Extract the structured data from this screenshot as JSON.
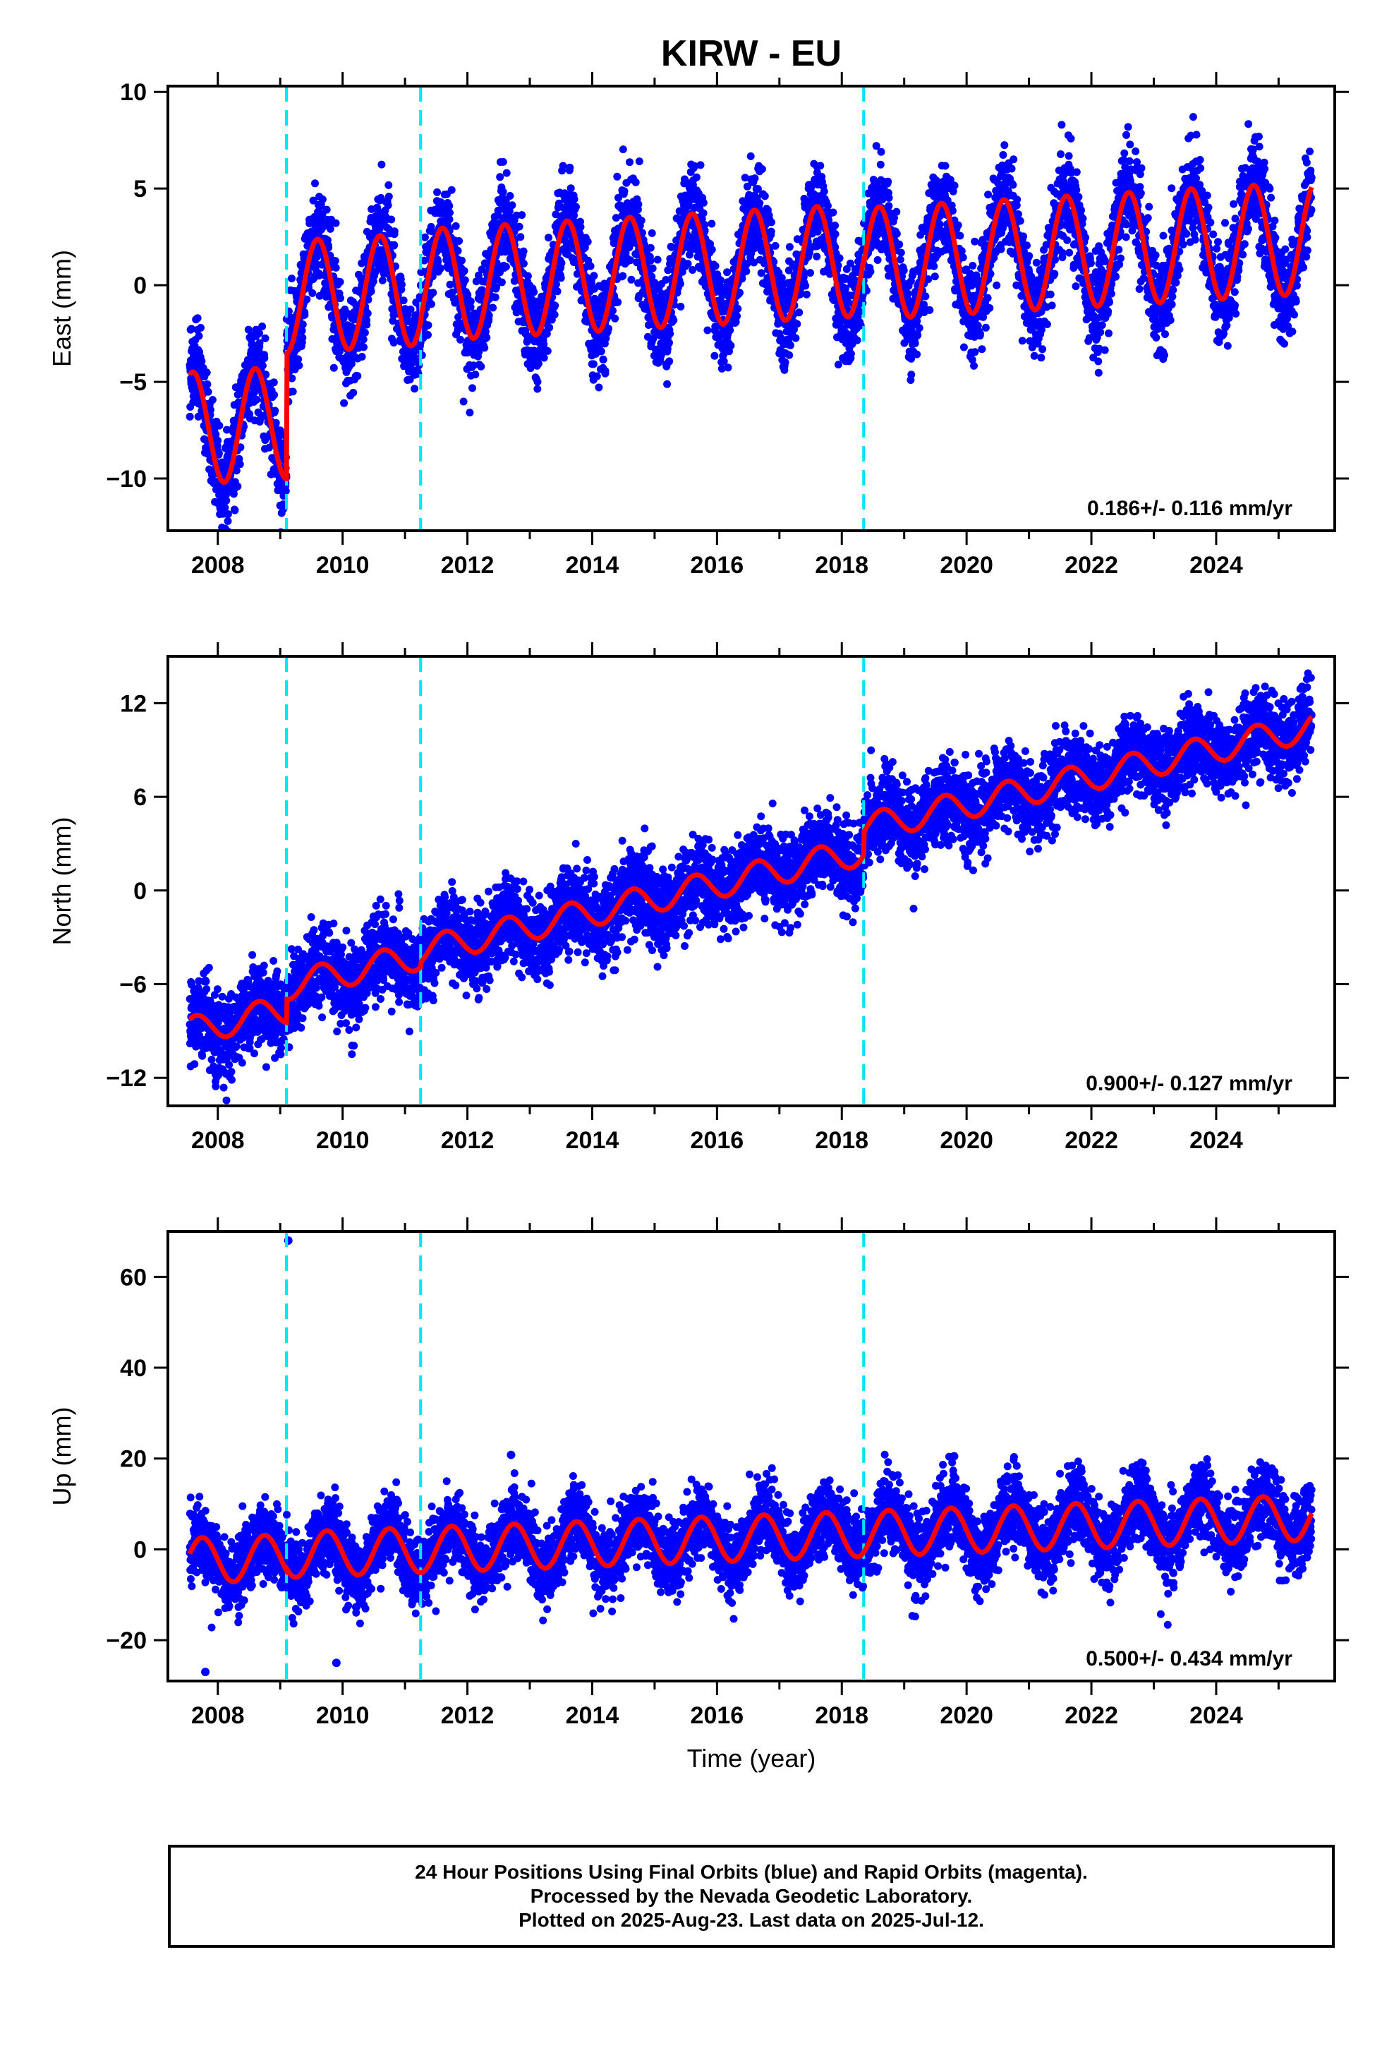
{
  "figure": {
    "title": "KIRW - EU"
  },
  "chart_data": [
    {
      "type": "scatter",
      "name": "east",
      "ylabel": "East (mm)",
      "xlabel": "",
      "xlim": [
        2007.2,
        2025.9
      ],
      "ylim": [
        -12.7,
        10.3
      ],
      "xticks": [
        2008,
        2010,
        2012,
        2014,
        2016,
        2018,
        2020,
        2022,
        2024
      ],
      "yticks": [
        10,
        5,
        0,
        -5,
        -10
      ],
      "rate_label": "0.186+/- 0.116 mm/yr",
      "steps": [
        2009.1,
        2011.25,
        2018.35
      ],
      "series": [
        {
          "kind": "points",
          "color": "#0000ff",
          "model": {
            "start": 2007.55,
            "end": 2025.53,
            "trend": 0.186,
            "amplitude": 2.9,
            "phase": 2008.35,
            "noise": 1.2,
            "offsets": [
              {
                "t": 2009.1,
                "v": 6.5
              },
              {
                "t": 2011.25,
                "v": 0.2
              },
              {
                "t": 2018.35,
                "v": -0.2
              }
            ],
            "base": -7.4
          }
        },
        {
          "kind": "fit",
          "color": "#ff0000"
        }
      ]
    },
    {
      "type": "scatter",
      "name": "north",
      "ylabel": "North (mm)",
      "xlabel": "",
      "xlim": [
        2007.2,
        2025.9
      ],
      "ylim": [
        -13.8,
        15.0
      ],
      "xticks": [
        2008,
        2010,
        2012,
        2014,
        2016,
        2018,
        2020,
        2022,
        2024
      ],
      "yticks": [
        12,
        6,
        0,
        -6,
        -12
      ],
      "rate_label": "0.900+/- 0.127 mm/yr",
      "steps": [
        2009.1,
        2011.25,
        2018.35
      ],
      "series": [
        {
          "kind": "points",
          "color": "#0000ff",
          "model": {
            "start": 2007.55,
            "end": 2025.53,
            "trend": 0.9,
            "amplitude": 0.9,
            "phase": 2008.4,
            "noise": 1.3,
            "offsets": [
              {
                "t": 2009.1,
                "v": 1.5
              },
              {
                "t": 2011.25,
                "v": 0.3
              },
              {
                "t": 2018.35,
                "v": 1.5
              }
            ],
            "base": -9.0
          }
        },
        {
          "kind": "fit",
          "color": "#ff0000"
        }
      ]
    },
    {
      "type": "scatter",
      "name": "up",
      "ylabel": "Up (mm)",
      "xlabel": "Time (year)",
      "xlim": [
        2007.2,
        2025.9
      ],
      "ylim": [
        -29,
        70
      ],
      "xticks": [
        2008,
        2010,
        2012,
        2014,
        2016,
        2018,
        2020,
        2022,
        2024
      ],
      "yticks": [
        60,
        40,
        20,
        0,
        -20
      ],
      "rate_label": "0.500+/- 0.434 mm/yr",
      "steps": [
        2009.1,
        2011.25,
        2018.35
      ],
      "outliers": [
        {
          "x": 2009.13,
          "y": 68
        },
        {
          "x": 2019.8,
          "y": 20.5
        },
        {
          "x": 2012.7,
          "y": 20.8
        },
        {
          "x": 2009.9,
          "y": -25
        },
        {
          "x": 2007.8,
          "y": -27
        }
      ],
      "series": [
        {
          "kind": "points",
          "color": "#0000ff",
          "model": {
            "start": 2007.55,
            "end": 2025.53,
            "trend": 0.5,
            "amplitude": 5.0,
            "phase": 2008.5,
            "noise": 4.0,
            "offsets": [
              {
                "t": 2009.1,
                "v": 0.5
              },
              {
                "t": 2011.25,
                "v": 0.0
              },
              {
                "t": 2018.35,
                "v": 0.0
              }
            ],
            "base": -2.5
          }
        },
        {
          "kind": "fit",
          "color": "#ff0000"
        }
      ]
    }
  ],
  "footer": {
    "lines": [
      "24 Hour Positions Using Final Orbits (blue) and Rapid Orbits (magenta).",
      "Processed by the Nevada Geodetic Laboratory.",
      "Plotted on 2025-Aug-23. Last data on 2025-Jul-12."
    ]
  },
  "colors": {
    "points": "#0000ff",
    "fit": "#ff0000",
    "steps": "#00e5ff",
    "axes": "#000000"
  }
}
